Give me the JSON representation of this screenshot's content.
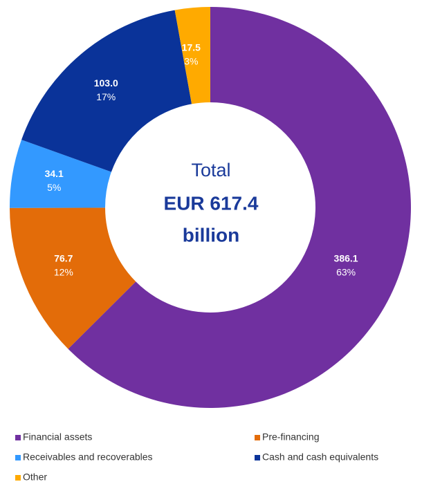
{
  "chart_data": {
    "type": "donut",
    "categories": [
      "Financial assets",
      "Pre-financing",
      "Receivables and recoverables",
      "Cash and cash equivalents",
      "Other"
    ],
    "values": [
      386.1,
      76.7,
      34.1,
      103.0,
      17.5
    ],
    "value_labels": [
      "386.1",
      "76.7",
      "34.1",
      "103.0",
      "17.5"
    ],
    "percent_labels": [
      "63%",
      "12%",
      "5%",
      "17%",
      "3%"
    ],
    "colors": [
      "#7030a0",
      "#e36c09",
      "#3399ff",
      "#0a3399",
      "#ffaa00"
    ],
    "center_text": [
      "Total",
      "EUR 617.4",
      "billion"
    ],
    "legend": "bottom"
  }
}
